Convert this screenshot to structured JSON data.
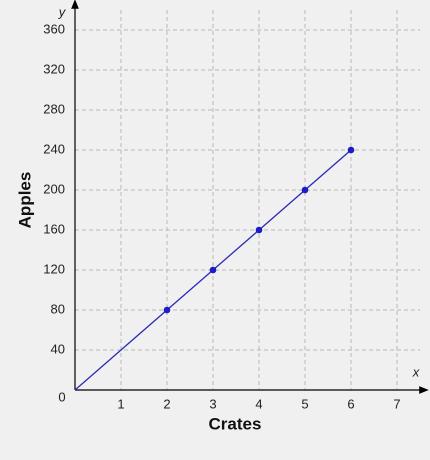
{
  "chart_data": {
    "type": "line",
    "xlabel": "Crates",
    "ylabel": "Apples",
    "x_symbol": "x",
    "y_symbol": "y",
    "xlim": [
      0,
      7.5
    ],
    "ylim": [
      0,
      380
    ],
    "xticks": [
      0,
      1,
      2,
      3,
      4,
      5,
      6,
      7
    ],
    "yticks": [
      40,
      80,
      120,
      160,
      200,
      240,
      280,
      320,
      360
    ],
    "grid": true,
    "series": [
      {
        "x": [
          0,
          6
        ],
        "values": [
          0,
          240
        ],
        "color": "#2a2ab8",
        "markers": false
      },
      {
        "x": [
          2,
          3,
          4,
          5,
          6
        ],
        "values": [
          80,
          120,
          160,
          200,
          240
        ],
        "color": "#1c1cc8",
        "markers": true
      }
    ]
  }
}
